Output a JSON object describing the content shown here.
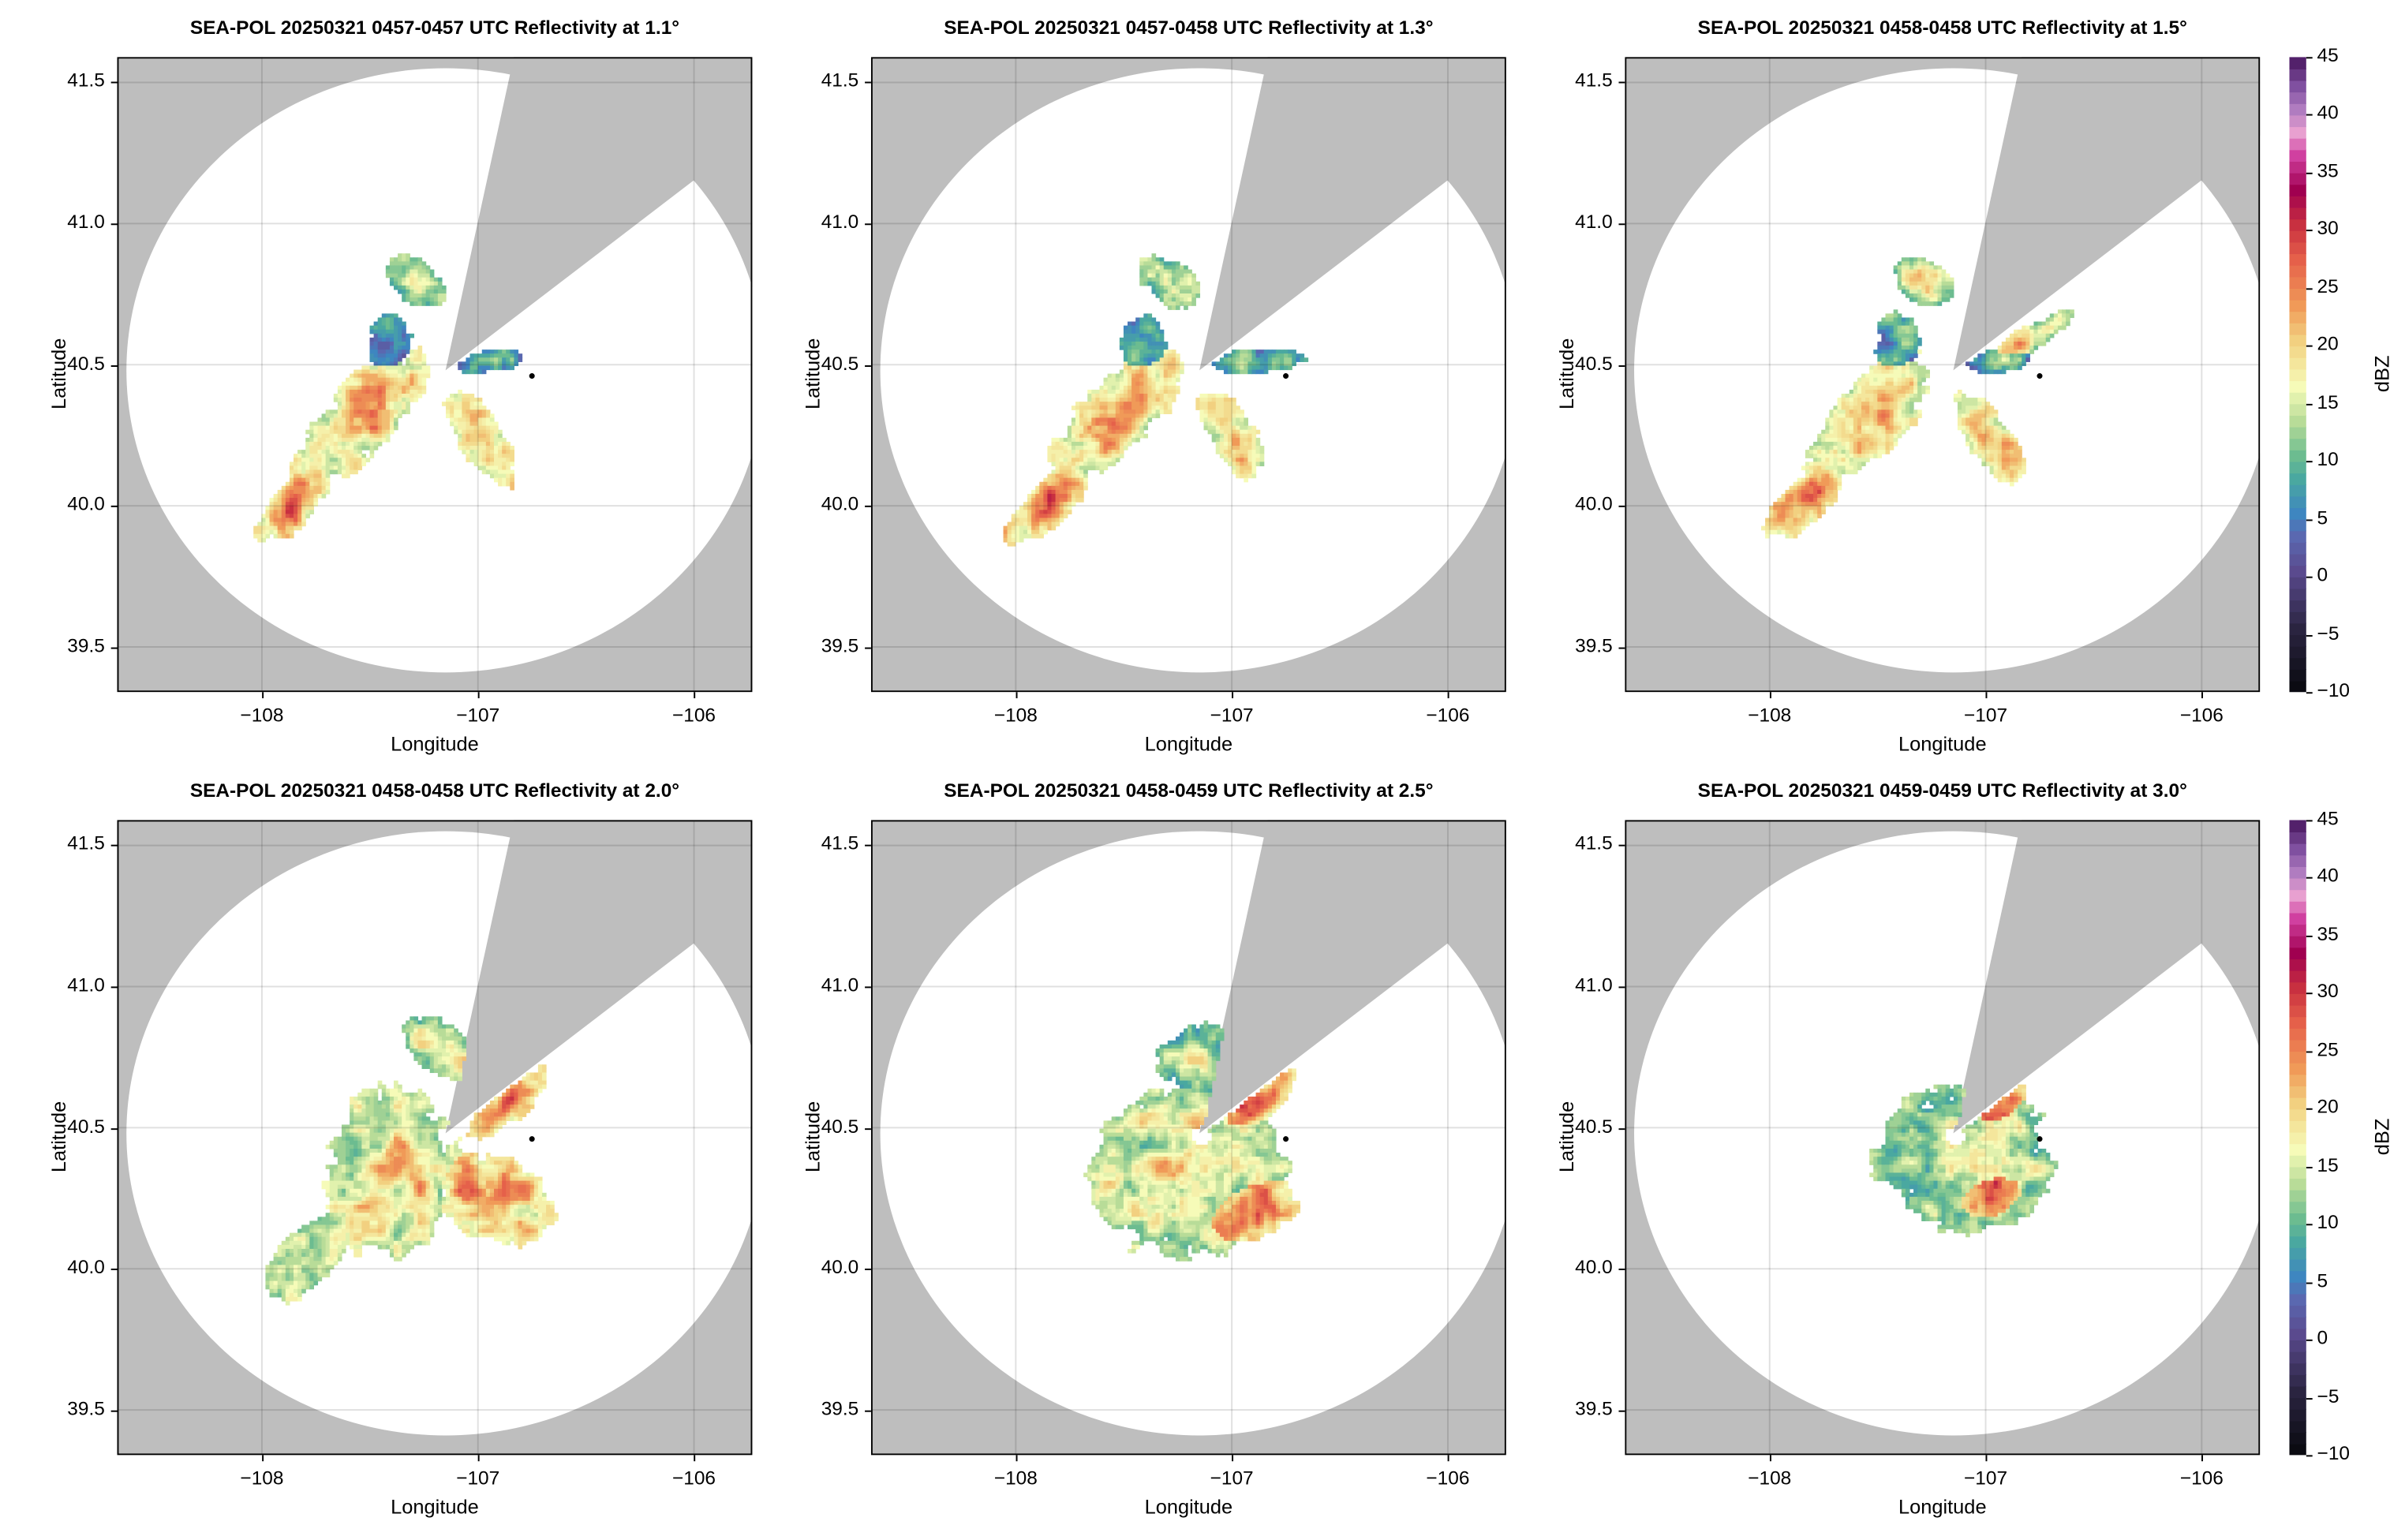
{
  "chart_data": [
    {
      "type": "heatmap",
      "title": "SEA-POL 20250321 0457-0457 UTC Reflectivity at 1.1°",
      "xlabel": "Longitude",
      "ylabel": "Latitude",
      "xlim": [
        -108.67,
        -105.73
      ],
      "ylim": [
        39.34,
        41.59
      ],
      "xticks": [
        -108,
        -107,
        -106
      ],
      "yticks": [
        39.5,
        40.0,
        40.5,
        41.0,
        41.5
      ],
      "grid": true,
      "marker": {
        "lon": -106.75,
        "lat": 40.46
      }
    },
    {
      "type": "heatmap",
      "title": "SEA-POL 20250321 0457-0458 UTC Reflectivity at 1.3°",
      "xlabel": "Longitude",
      "ylabel": "Latitude",
      "xlim": [
        -108.67,
        -105.73
      ],
      "ylim": [
        39.34,
        41.59
      ],
      "xticks": [
        -108,
        -107,
        -106
      ],
      "yticks": [
        39.5,
        40.0,
        40.5,
        41.0,
        41.5
      ],
      "grid": true,
      "marker": {
        "lon": -106.75,
        "lat": 40.46
      }
    },
    {
      "type": "heatmap",
      "title": "SEA-POL 20250321 0458-0458 UTC Reflectivity at 1.5°",
      "xlabel": "Longitude",
      "ylabel": "Latitude",
      "xlim": [
        -108.67,
        -105.73
      ],
      "ylim": [
        39.34,
        41.59
      ],
      "xticks": [
        -108,
        -107,
        -106
      ],
      "yticks": [
        39.5,
        40.0,
        40.5,
        41.0,
        41.5
      ],
      "grid": true,
      "marker": {
        "lon": -106.75,
        "lat": 40.46
      }
    },
    {
      "type": "heatmap",
      "title": "SEA-POL 20250321 0458-0458 UTC Reflectivity at 2.0°",
      "xlabel": "Longitude",
      "ylabel": "Latitude",
      "xlim": [
        -108.67,
        -105.73
      ],
      "ylim": [
        39.34,
        41.59
      ],
      "xticks": [
        -108,
        -107,
        -106
      ],
      "yticks": [
        39.5,
        40.0,
        40.5,
        41.0,
        41.5
      ],
      "grid": true,
      "marker": {
        "lon": -106.75,
        "lat": 40.46
      }
    },
    {
      "type": "heatmap",
      "title": "SEA-POL 20250321 0458-0459 UTC Reflectivity at 2.5°",
      "xlabel": "Longitude",
      "ylabel": "Latitude",
      "xlim": [
        -108.67,
        -105.73
      ],
      "ylim": [
        39.34,
        41.59
      ],
      "xticks": [
        -108,
        -107,
        -106
      ],
      "yticks": [
        39.5,
        40.0,
        40.5,
        41.0,
        41.5
      ],
      "grid": true,
      "marker": {
        "lon": -106.75,
        "lat": 40.46
      }
    },
    {
      "type": "heatmap",
      "title": "SEA-POL 20250321 0459-0459 UTC Reflectivity at 3.0°",
      "xlabel": "Longitude",
      "ylabel": "Latitude",
      "xlim": [
        -108.67,
        -105.73
      ],
      "ylim": [
        39.34,
        41.59
      ],
      "xticks": [
        -108,
        -107,
        -106
      ],
      "yticks": [
        39.5,
        40.0,
        40.5,
        41.0,
        41.5
      ],
      "grid": true,
      "marker": {
        "lon": -106.75,
        "lat": 40.46
      }
    }
  ],
  "colorbar": {
    "label": "dBZ",
    "range": [
      -10,
      45
    ],
    "ticks": [
      -10,
      -5,
      0,
      5,
      10,
      15,
      20,
      25,
      30,
      35,
      40,
      45
    ],
    "stops": [
      [
        -10,
        "#0b0b12"
      ],
      [
        -5,
        "#2a2440"
      ],
      [
        0,
        "#5a4a8e"
      ],
      [
        3,
        "#5a68b0"
      ],
      [
        5,
        "#3e86c0"
      ],
      [
        8,
        "#4aa8a0"
      ],
      [
        10,
        "#6cbc90"
      ],
      [
        13,
        "#b8dc98"
      ],
      [
        16,
        "#f6fbb8"
      ],
      [
        20,
        "#f2d080"
      ],
      [
        23,
        "#f09a58"
      ],
      [
        27,
        "#e5604a"
      ],
      [
        30,
        "#c83040"
      ],
      [
        33,
        "#a00050"
      ],
      [
        36,
        "#d040a0"
      ],
      [
        38,
        "#e8a0d0"
      ],
      [
        40,
        "#b07cc0"
      ],
      [
        42,
        "#8050a0"
      ],
      [
        45,
        "#3c0a50"
      ]
    ]
  },
  "colors": {
    "no_coverage": "#bebebe",
    "in_range": "#ffffff",
    "grid": "#d8d8d8"
  }
}
